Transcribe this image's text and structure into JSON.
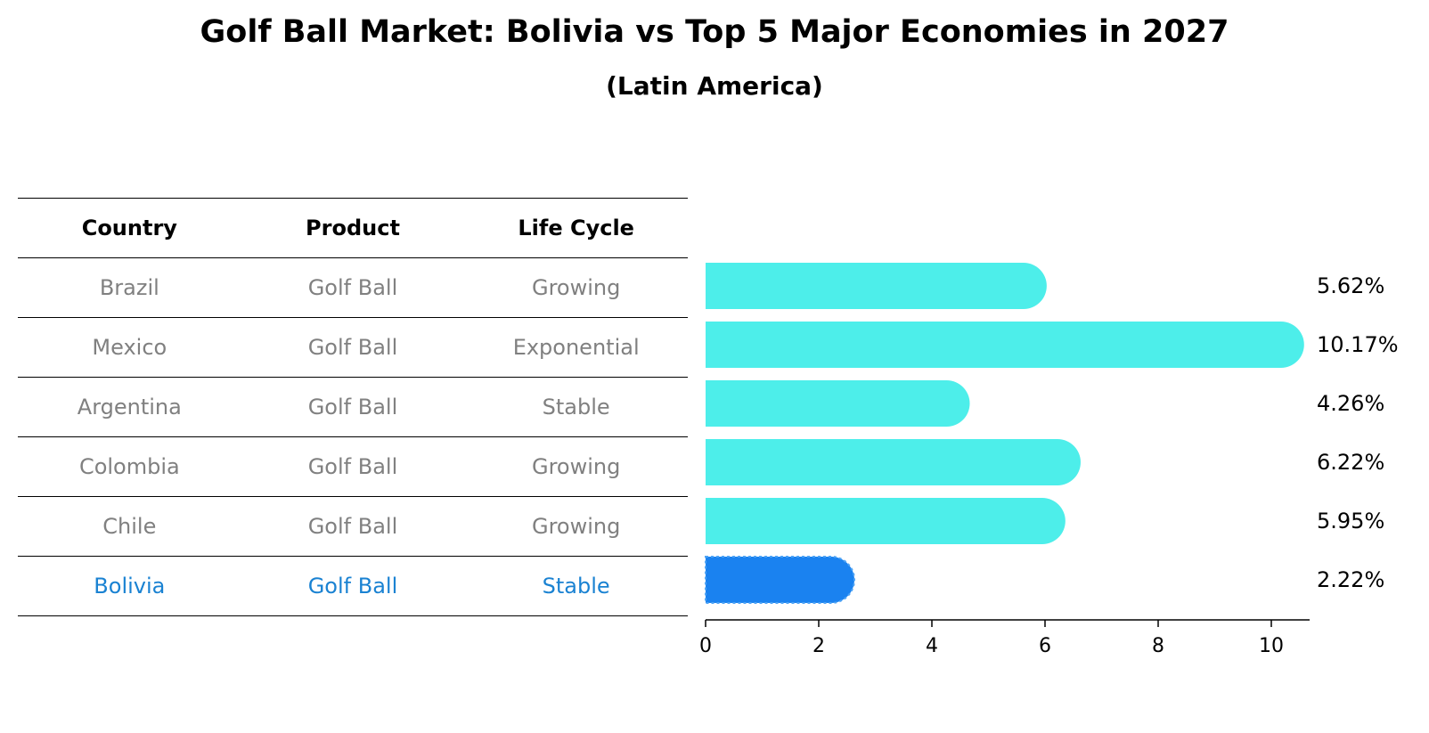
{
  "chart_data": {
    "type": "table",
    "title": "Golf Ball Market: Bolivia vs Top 5 Major Economies in 2027",
    "subtitle": "(Latin America)",
    "columns": [
      "Country",
      "Product",
      "Life Cycle"
    ],
    "rows": [
      {
        "country": "Brazil",
        "product": "Golf Ball",
        "life_cycle": "Growing",
        "value": 5.62,
        "label": "5.62%",
        "highlight": false
      },
      {
        "country": "Mexico",
        "product": "Golf Ball",
        "life_cycle": "Exponential",
        "value": 10.17,
        "label": "10.17%",
        "highlight": false
      },
      {
        "country": "Argentina",
        "product": "Golf Ball",
        "life_cycle": "Stable",
        "value": 4.26,
        "label": "4.26%",
        "highlight": false
      },
      {
        "country": "Colombia",
        "product": "Golf Ball",
        "life_cycle": "Growing",
        "value": 6.22,
        "label": "6.22%",
        "highlight": false
      },
      {
        "country": "Chile",
        "product": "Golf Ball",
        "life_cycle": "Growing",
        "value": 5.95,
        "label": "5.95%",
        "highlight": false
      },
      {
        "country": "Bolivia",
        "product": "Golf Ball",
        "life_cycle": "Stable",
        "value": 2.22,
        "label": "2.22%",
        "highlight": true
      }
    ],
    "bar_series": {
      "type": "bar",
      "orientation": "horizontal"
    },
    "x_axis": {
      "ticks": [
        0,
        2,
        4,
        6,
        8,
        10
      ],
      "xlim": [
        0,
        10.7
      ]
    },
    "colors": {
      "bar": "#4deeea",
      "highlight_bar": "#1a82f0",
      "highlight_text": "#1a82d2",
      "muted_text": "#808080"
    }
  }
}
